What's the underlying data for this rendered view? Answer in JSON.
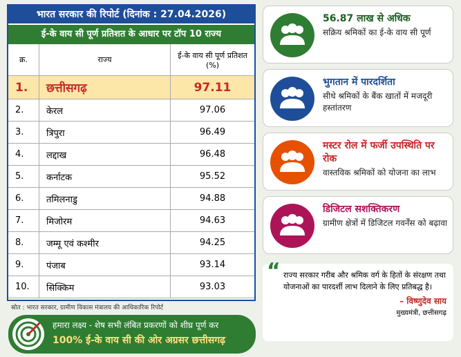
{
  "header": {
    "title": "भारत सरकार की रिपोर्ट (दिनांक : 27.04.2026)",
    "subtitle": "ई-के वाय सी पूर्ण प्रतिशत के आधार पर टॉप 10 राज्य"
  },
  "table": {
    "columns": [
      "क्र.",
      "राज्य",
      "ई-के वाय सी पूर्ण प्रतिशत (%)"
    ],
    "rows": [
      [
        "1.",
        "छत्तीसगढ़",
        "97.11"
      ],
      [
        "2.",
        "केरल",
        "97.06"
      ],
      [
        "3.",
        "त्रिपुरा",
        "96.49"
      ],
      [
        "4.",
        "लद्दाख",
        "96.48"
      ],
      [
        "5.",
        "कर्नाटक",
        "95.52"
      ],
      [
        "6.",
        "तमिलनाडु",
        "94.88"
      ],
      [
        "7.",
        "मिजोरम",
        "94.63"
      ],
      [
        "8.",
        "जम्मू एवं कश्मीर",
        "94.25"
      ],
      [
        "9.",
        "पंजाब",
        "93.14"
      ],
      [
        "10.",
        "सिक्किम",
        "93.03"
      ]
    ]
  },
  "source": "स्रोत : भारत सरकार, ग्रामीण विकास मंत्रालय की आधिकारिक रिपोर्ट",
  "banner": {
    "line1": "हमारा लक्ष्य - शेष सभी लंबित प्रकरणों को शीघ्र पूर्ण कर",
    "line2": "100% ई-के वाय सी की ओर अग्रसर छत्तीसगढ़"
  },
  "cards": [
    {
      "title": "56.87 लाख से अधिक",
      "text": "सक्रिय श्रमिकों का ई-के वाय सी पूर्ण"
    },
    {
      "title": "भुगतान में पारदर्शिता",
      "text": "सीधे श्रमिकों के बैंक खातों में मजदूरी हस्तांतरण"
    },
    {
      "title": "मस्टर रोल में फर्जी उपस्थिति पर रोक",
      "text": "वास्तविक श्रमिकों को योजना का लाभ"
    },
    {
      "title": "डिजिटल सशक्तिकरण",
      "text": "ग्रामीण क्षेत्रों में डिजिटल गवर्नेंस को बढ़ावा"
    }
  ],
  "quote": {
    "text": "राज्य सरकार गरीब और श्रमिक वर्ग के हितों के संरक्षण तथा योजनाओं का पारदर्शी लाभ दिलाने के लिए प्रतिबद्ध है।",
    "author": "– विष्णुदेव साय",
    "role": "मुख्यमंत्री, छत्तीसगढ़"
  }
}
